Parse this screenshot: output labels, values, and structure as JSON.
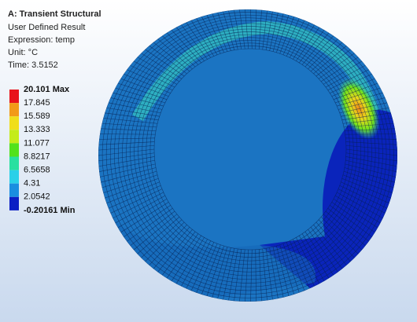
{
  "header": {
    "title": "A: Transient Structural",
    "lines": [
      "User Defined Result",
      "Expression: temp",
      "Unit: °C",
      "Time: 3.5152"
    ]
  },
  "legend": {
    "labels": [
      "20.101 Max",
      "17.845",
      "15.589",
      "13.333",
      "11.077",
      "8.8217",
      "6.5658",
      "4.31",
      "2.0542",
      "-0.20161 Min"
    ],
    "colors": [
      "#e8121a",
      "#f29a18",
      "#f0de1a",
      "#c4ec1a",
      "#52e21c",
      "#28e0a0",
      "#2ad0e8",
      "#1a8ee0",
      "#0b1ec4"
    ]
  }
}
